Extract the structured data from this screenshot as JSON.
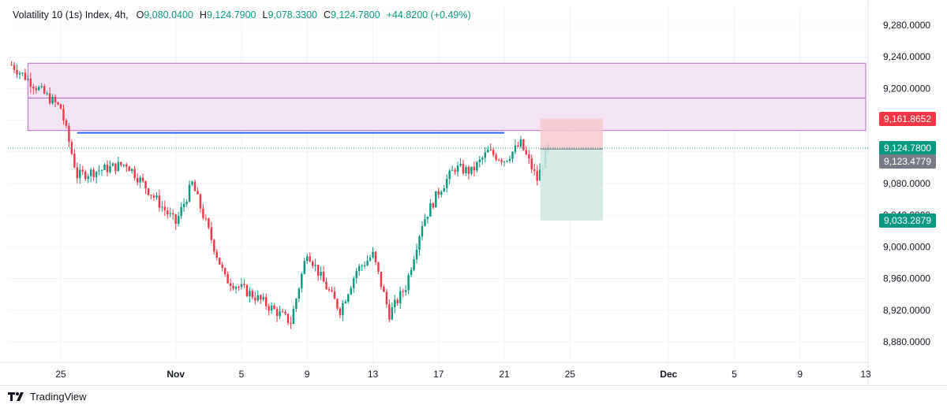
{
  "header": {
    "symbol": "Volatility 10 (1s) Index, 4h,",
    "open_label": "O",
    "open": "9,080.0400",
    "high_label": "H",
    "high": "9,124.7900",
    "low_label": "L",
    "low": "9,078.3300",
    "close_label": "C",
    "close": "9,124.7800",
    "change": "+44.8200 (+0.49%)"
  },
  "price_badges": {
    "stop": "9,161.8652",
    "last": "9,124.7800",
    "entry": "9,123.4779",
    "target": "9,033.2879"
  },
  "footer": {
    "brand": "TradingView",
    "logo": "TV"
  },
  "colors": {
    "up": "#089981",
    "down": "#f23645",
    "zone_fill": "#f3e5f5",
    "zone_line": "#ba68c8",
    "resistance": "#2962ff",
    "stop_fill": "#f8c9cd",
    "target_fill": "#cfe8e1",
    "entry_badge": "#787b86"
  },
  "chart_data": {
    "type": "candlestick",
    "timeframe": "4h",
    "ylim": [
      8850,
      9300
    ],
    "y_ticks": [
      "9,280.0000",
      "9,240.0000",
      "9,200.0000",
      "9,160.0000",
      "9,120.0000",
      "9,080.0000",
      "9,040.0000",
      "9,000.0000",
      "8,960.0000",
      "8,920.0000",
      "8,880.0000"
    ],
    "y_tick_values": [
      9280,
      9240,
      9200,
      9160,
      9120,
      9080,
      9040,
      9000,
      8960,
      8920,
      8880
    ],
    "x_ticks": [
      "25",
      "Nov",
      "5",
      "9",
      "13",
      "17",
      "21",
      "25",
      "Dec",
      "5",
      "9",
      "13"
    ],
    "x_tick_days": [
      "Oct 25",
      "Nov 1",
      "Nov 5",
      "Nov 9",
      "Nov 13",
      "Nov 17",
      "Nov 21",
      "Nov 25",
      "Dec 1",
      "Dec 5",
      "Dec 9",
      "Dec 13"
    ],
    "x_start": "Oct 22",
    "x_end": "Dec 13",
    "trend_path": [
      [
        "Oct 22",
        9230
      ],
      [
        "Oct 25",
        9175
      ],
      [
        "Oct 26",
        9090
      ],
      [
        "Oct 29",
        9105
      ],
      [
        "Nov 1",
        9030
      ],
      [
        "Nov 2",
        9080
      ],
      [
        "Nov 4",
        8960
      ],
      [
        "Nov 6",
        8935
      ],
      [
        "Nov 8",
        8905
      ],
      [
        "Nov 9",
        8995
      ],
      [
        "Nov 10",
        8955
      ],
      [
        "Nov 11",
        8920
      ],
      [
        "Nov 12",
        8970
      ],
      [
        "Nov 13",
        8990
      ],
      [
        "Nov 14",
        8915
      ],
      [
        "Nov 15",
        8950
      ],
      [
        "Nov 16",
        9030
      ],
      [
        "Nov 17",
        9070
      ],
      [
        "Nov 18",
        9100
      ],
      [
        "Nov 19",
        9095
      ],
      [
        "Nov 20",
        9120
      ],
      [
        "Nov 21",
        9110
      ],
      [
        "Nov 22",
        9130
      ],
      [
        "Nov 23",
        9085
      ],
      [
        "Nov 23 16:00",
        9124.78
      ]
    ],
    "supply_zone": {
      "from": "Oct 23",
      "to": "Dec 13",
      "top": 9232,
      "mid": 9188,
      "bottom": 9147
    },
    "resistance_line": {
      "from": "Oct 26",
      "to": "Nov 21",
      "price": 9144
    },
    "position": {
      "side": "short",
      "from": "Nov 23",
      "to": "Nov 27",
      "entry": 9123.4779,
      "stop": 9161.8652,
      "target": 9033.2879
    },
    "last_price": 9124.78
  }
}
